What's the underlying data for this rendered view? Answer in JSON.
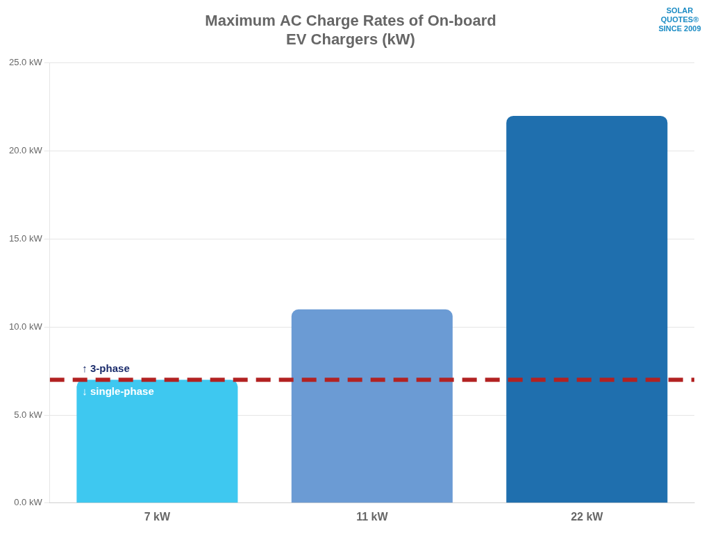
{
  "chart_data": {
    "type": "bar",
    "title": "Maximum AC Charge Rates of On-board\nEV Chargers (kW)",
    "categories": [
      "7 kW",
      "11 kW",
      "22 kW"
    ],
    "values": [
      7,
      11,
      22
    ],
    "colors": [
      "#3EC8F0",
      "#6B9BD4",
      "#1F6FAE"
    ],
    "ylim": [
      0,
      25
    ],
    "yticks": [
      {
        "value": 0,
        "label": "0.0 kW"
      },
      {
        "value": 5,
        "label": "5.0 kW"
      },
      {
        "value": 10,
        "label": "10.0 kW"
      },
      {
        "value": 15,
        "label": "15.0 kW"
      },
      {
        "value": 20,
        "label": "20.0 kW"
      },
      {
        "value": 25,
        "label": "25.0 kW"
      }
    ],
    "grid": true,
    "reference_line": {
      "value": 7,
      "color": "#B22222",
      "line_style": "dashed"
    },
    "annotations": [
      {
        "text": "↑ 3-phase",
        "color": "#1A2B6B"
      },
      {
        "text": "↓ single-phase",
        "color": "#FFFFFF"
      },
      {
        "text": "SOLAR\nQUOTES®\nSINCE 2009",
        "color": "#1A8BC4"
      }
    ]
  }
}
